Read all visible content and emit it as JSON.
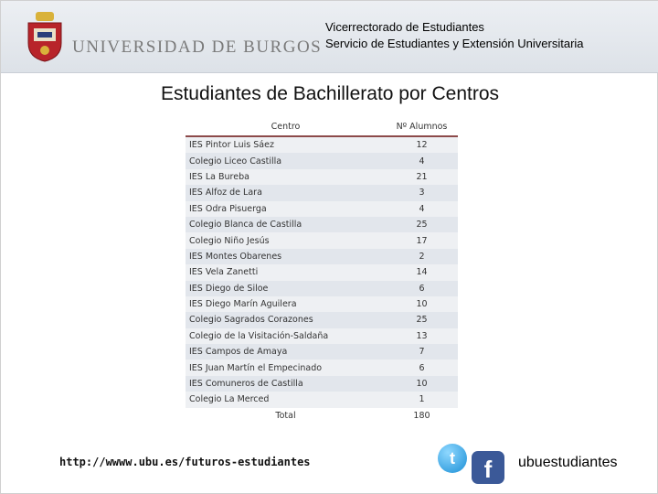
{
  "header": {
    "university_name": "UNIVERSIDAD DE BURGOS",
    "vicerrectorado": "Vicerrectorado de Estudiantes",
    "servicio": "Servicio de Estudiantes y Extensión Universitaria"
  },
  "title": "Estudiantes de Bachillerato por Centros",
  "table": {
    "headers": [
      "Centro",
      "Nº Alumnos"
    ],
    "rows": [
      {
        "centro": "IES Pintor Luis Sáez",
        "alumnos": "12"
      },
      {
        "centro": "Colegio Liceo Castilla",
        "alumnos": "4"
      },
      {
        "centro": "IES La Bureba",
        "alumnos": "21"
      },
      {
        "centro": "IES Alfoz de Lara",
        "alumnos": "3"
      },
      {
        "centro": "IES Odra Pisuerga",
        "alumnos": "4"
      },
      {
        "centro": "Colegio Blanca de Castilla",
        "alumnos": "25"
      },
      {
        "centro": "Colegio Niño Jesús",
        "alumnos": "17"
      },
      {
        "centro": "IES Montes Obarenes",
        "alumnos": "2"
      },
      {
        "centro": "IES Vela Zanetti",
        "alumnos": "14"
      },
      {
        "centro": "IES Diego de Siloe",
        "alumnos": "6"
      },
      {
        "centro": "IES Diego Marín Aguilera",
        "alumnos": "10"
      },
      {
        "centro": "Colegio Sagrados Corazones",
        "alumnos": "25"
      },
      {
        "centro": "Colegio de la Visitación-Saldaña",
        "alumnos": "13"
      },
      {
        "centro": "IES Campos de Amaya",
        "alumnos": "7"
      },
      {
        "centro": "IES Juan Martín el Empecinado",
        "alumnos": "6"
      },
      {
        "centro": "IES Comuneros de Castilla",
        "alumnos": "10"
      },
      {
        "centro": "Colegio La Merced",
        "alumnos": "1"
      }
    ],
    "total_label": "Total",
    "total_value": "180"
  },
  "footer": {
    "url": "http://wwww.ubu.es/futuros-estudiantes",
    "twitter_icon": "twitter-icon",
    "facebook_icon": "facebook-icon",
    "handle": "ubuestudiantes"
  }
}
